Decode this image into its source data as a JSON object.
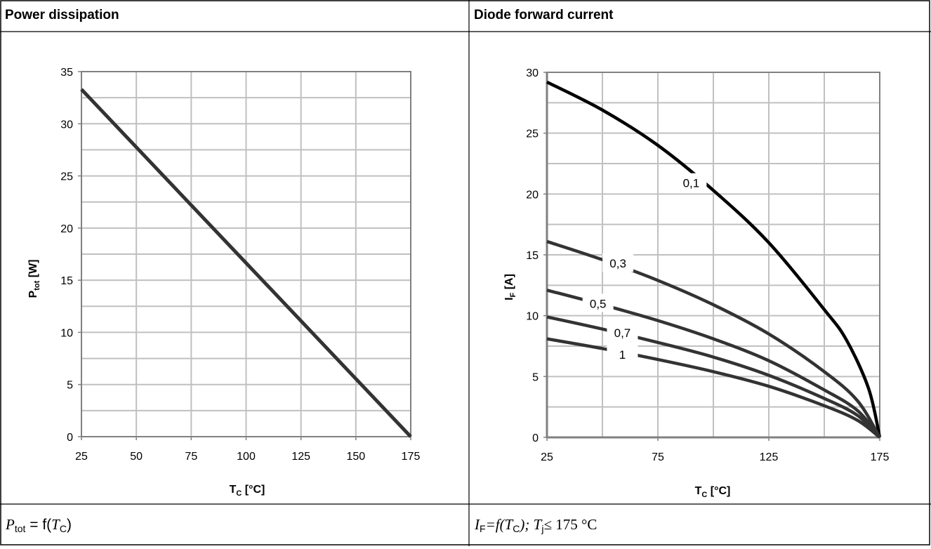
{
  "header": {
    "left_title": "Power dissipation",
    "right_title": "Diode forward current"
  },
  "captions": {
    "left": {
      "p": "P",
      "p_sub": "tot",
      "eq": " = f(",
      "t": "T",
      "t_sub": "C",
      "close": ")"
    },
    "right": {
      "i": "I",
      "i_sub": "F",
      "eq": "=f(",
      "t": "T",
      "t_sub": "C",
      "mid": "); ",
      "tj": "T",
      "tj_sub": "j",
      "limit": "≤ 175 °C"
    }
  },
  "colors": {
    "line": "#333333",
    "grid": "#c0c0c0",
    "axis": "#808080",
    "dark_line": "#000000"
  },
  "chart_data": [
    {
      "type": "line",
      "title": "Power dissipation",
      "xlabel": "T",
      "xlabel_sub": "C",
      "xlabel_unit": " [°C]",
      "ylabel": "P",
      "ylabel_sub": "tot",
      "ylabel_unit": " [W]",
      "xlim": [
        25,
        175
      ],
      "ylim": [
        0,
        35
      ],
      "xticks": [
        25,
        50,
        75,
        100,
        125,
        150,
        175
      ],
      "yticks": [
        0,
        5,
        10,
        15,
        20,
        25,
        30,
        35
      ],
      "grid": true,
      "series": [
        {
          "x": [
            25,
            175
          ],
          "y": [
            33.3,
            0
          ]
        }
      ]
    },
    {
      "type": "line",
      "title": "Diode forward current",
      "xlabel": "T",
      "xlabel_sub": "C",
      "xlabel_unit": " [°C]",
      "ylabel": "I",
      "ylabel_sub": "F",
      "ylabel_unit": " [A]",
      "xlim": [
        25,
        175
      ],
      "ylim": [
        0,
        30
      ],
      "xticks": [
        25,
        75,
        125,
        175
      ],
      "yticks": [
        0,
        5,
        10,
        15,
        20,
        25,
        30
      ],
      "grid": true,
      "series": [
        {
          "name": "0,1",
          "x": [
            25,
            50,
            75,
            100,
            125,
            150,
            160,
            170,
            175
          ],
          "y": [
            29.2,
            26.9,
            24.0,
            20.3,
            16.0,
            10.5,
            8.0,
            4.0,
            0
          ]
        },
        {
          "name": "0,3",
          "x": [
            25,
            50,
            75,
            100,
            125,
            150,
            165,
            175
          ],
          "y": [
            16.1,
            14.6,
            12.9,
            10.9,
            8.5,
            5.4,
            3.0,
            0
          ]
        },
        {
          "name": "0,5",
          "x": [
            25,
            50,
            75,
            100,
            125,
            150,
            165,
            175
          ],
          "y": [
            12.1,
            10.9,
            9.6,
            8.1,
            6.3,
            3.9,
            2.2,
            0
          ]
        },
        {
          "name": "0,7",
          "x": [
            25,
            50,
            75,
            100,
            125,
            150,
            165,
            175
          ],
          "y": [
            9.9,
            8.9,
            7.8,
            6.6,
            5.1,
            3.2,
            1.8,
            0
          ]
        },
        {
          "name": "1",
          "x": [
            25,
            50,
            75,
            100,
            125,
            150,
            165,
            175
          ],
          "y": [
            8.1,
            7.3,
            6.4,
            5.4,
            4.2,
            2.6,
            1.4,
            0
          ]
        }
      ]
    }
  ]
}
